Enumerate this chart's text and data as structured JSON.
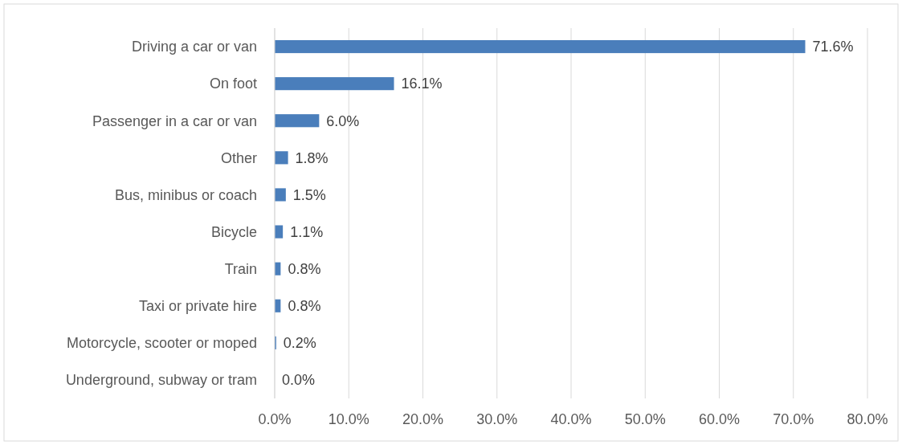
{
  "chart_data": {
    "type": "bar",
    "orientation": "horizontal",
    "categories": [
      "Driving a car or van",
      "On foot",
      "Passenger in a car or van",
      "Other",
      "Bus, minibus or coach",
      "Bicycle",
      "Train",
      "Taxi or private hire",
      "Motorcycle, scooter or moped",
      "Underground, subway or tram"
    ],
    "values": [
      71.6,
      16.1,
      6.0,
      1.8,
      1.5,
      1.1,
      0.8,
      0.8,
      0.2,
      0.0
    ],
    "value_labels": [
      "71.6%",
      "16.1%",
      "6.0%",
      "1.8%",
      "1.5%",
      "1.1%",
      "0.8%",
      "0.8%",
      "0.2%",
      "0.0%"
    ],
    "color": "#4a7ebb",
    "xlim": [
      0,
      80
    ],
    "xticks": [
      {
        "value": 0,
        "label": "0.0%"
      },
      {
        "value": 10,
        "label": "10.0%"
      },
      {
        "value": 20,
        "label": "20.0%"
      },
      {
        "value": 30,
        "label": "30.0%"
      },
      {
        "value": 40,
        "label": "40.0%"
      },
      {
        "value": 50,
        "label": "50.0%"
      },
      {
        "value": 60,
        "label": "60.0%"
      },
      {
        "value": 70,
        "label": "70.0%"
      },
      {
        "value": 80,
        "label": "80.0%"
      }
    ],
    "grid": "x"
  }
}
